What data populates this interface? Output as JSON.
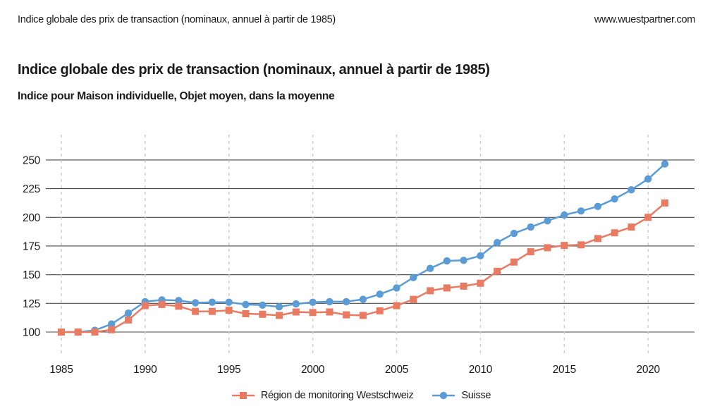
{
  "header": {
    "left": "Indice globale des prix de transaction (nominaux, annuel à partir de 1985)",
    "right": "www.wuestpartner.com"
  },
  "title": "Indice globale des prix de transaction (nominaux, annuel à partir de 1985)",
  "subtitle": "Indice pour Maison individuelle, Objet moyen, dans la moyenne",
  "chart_data": {
    "type": "line",
    "x": [
      1985,
      1986,
      1987,
      1988,
      1989,
      1990,
      1991,
      1992,
      1993,
      1994,
      1995,
      1996,
      1997,
      1998,
      1999,
      2000,
      2001,
      2002,
      2003,
      2004,
      2005,
      2006,
      2007,
      2008,
      2009,
      2010,
      2011,
      2012,
      2013,
      2014,
      2015,
      2016,
      2017,
      2018,
      2019,
      2020,
      2021
    ],
    "series": [
      {
        "name": "Région de monitoring Westschweiz",
        "color": "#E97B62",
        "marker": "square",
        "values": [
          100,
          100,
          100,
          102,
          110.5,
          123,
          124,
          122.5,
          118,
          118,
          119,
          116,
          115.5,
          114.5,
          117.5,
          117,
          117.5,
          115,
          114.5,
          118.5,
          123,
          128.5,
          136,
          138.5,
          140,
          142.5,
          153,
          161,
          170,
          173.5,
          175.5,
          176,
          181.5,
          186.5,
          191.5,
          200,
          212.5
        ]
      },
      {
        "name": "Suisse",
        "color": "#5B9CD6",
        "marker": "circle",
        "values": [
          100,
          100,
          101.5,
          107,
          116.5,
          126.5,
          128,
          127.5,
          125.5,
          126,
          126,
          124,
          123.5,
          122,
          124.5,
          126,
          126.5,
          126.5,
          128.5,
          133,
          138.5,
          147.5,
          155.5,
          162,
          162.5,
          166.5,
          178,
          186,
          191.5,
          197,
          202,
          205.5,
          209.5,
          216,
          224,
          233.5,
          246.5
        ]
      }
    ],
    "y_ticks": [
      100,
      125,
      150,
      175,
      200,
      225,
      250
    ],
    "x_ticks": [
      1985,
      1990,
      1995,
      2000,
      2005,
      2010,
      2015,
      2020
    ],
    "ylim": [
      100,
      250
    ],
    "grid": "horizontal-solid-vertical-dashed",
    "grid_color": "#4a4a4a",
    "grid_dash_color": "#cccccc",
    "legend_position": "bottom"
  }
}
